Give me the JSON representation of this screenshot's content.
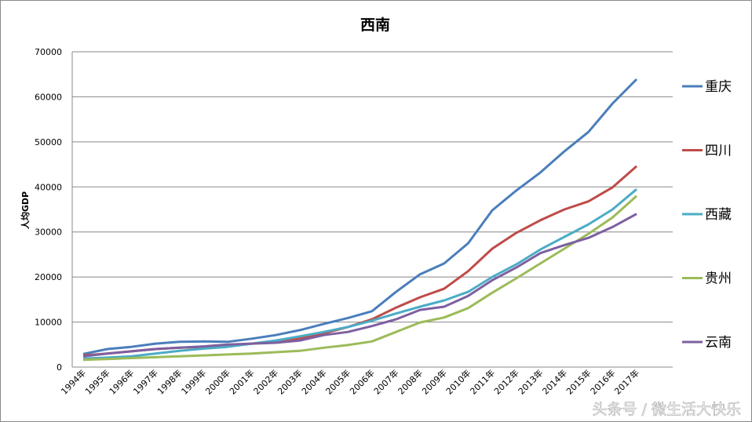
{
  "chart_data": {
    "type": "line",
    "title": "西南",
    "xlabel": "",
    "ylabel": "人均GDP",
    "ylim": [
      0,
      70000
    ],
    "yticks": [
      0,
      10000,
      20000,
      30000,
      40000,
      50000,
      60000,
      70000
    ],
    "grid": true,
    "legend_position": "right",
    "categories": [
      "1994年",
      "1995年",
      "1996年",
      "1997年",
      "1998年",
      "1999年",
      "2000年",
      "2001年",
      "2002年",
      "2003年",
      "2004年",
      "2005年",
      "2006年",
      "2007年",
      "2008年",
      "2009年",
      "2010年",
      "2011年",
      "2012年",
      "2013年",
      "2014年",
      "2015年",
      "2016年",
      "2017年"
    ],
    "series": [
      {
        "name": "重庆",
        "color": "#4a7ebb",
        "values": [
          2900,
          4000,
          4500,
          5200,
          5600,
          5700,
          5600,
          6300,
          7100,
          8200,
          9600,
          10900,
          12400,
          16700,
          20600,
          23000,
          27500,
          34800,
          39200,
          43200,
          47900,
          52200,
          58500,
          63900
        ]
      },
      {
        "name": "四川",
        "color": "#be4b48",
        "values": [
          2600,
          3000,
          3500,
          4000,
          4300,
          4500,
          4800,
          5200,
          5800,
          6400,
          7500,
          8900,
          10600,
          13200,
          15500,
          17400,
          21300,
          26300,
          29800,
          32600,
          35000,
          36800,
          39900,
          44600
        ]
      },
      {
        "name": "西藏",
        "color": "#4bacc6",
        "values": [
          1900,
          2100,
          2400,
          3000,
          3600,
          4100,
          4500,
          5200,
          5900,
          6800,
          7800,
          8900,
          10300,
          11900,
          13400,
          14800,
          16700,
          20000,
          22800,
          26100,
          28900,
          31700,
          35000,
          39500
        ]
      },
      {
        "name": "贵州",
        "color": "#9bbb59",
        "values": [
          1600,
          1800,
          2000,
          2200,
          2400,
          2600,
          2800,
          3000,
          3300,
          3600,
          4300,
          4900,
          5700,
          7800,
          9900,
          11000,
          13100,
          16500,
          19700,
          23000,
          26300,
          29600,
          33200,
          38000
        ]
      },
      {
        "name": "云南",
        "color": "#7d60a0",
        "values": [
          2400,
          3000,
          3500,
          4000,
          4300,
          4600,
          5000,
          5200,
          5400,
          5900,
          7100,
          7800,
          9100,
          10600,
          12700,
          13400,
          15800,
          19300,
          22100,
          25300,
          27100,
          28700,
          31100,
          34000
        ]
      }
    ]
  },
  "watermark": "头条号 / 微生活大快乐"
}
